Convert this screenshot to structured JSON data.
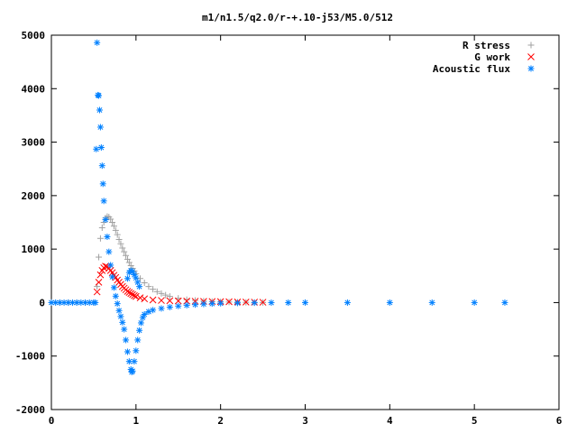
{
  "chart_data": {
    "type": "scatter",
    "title": "m1/n1.5/q2.0/r-+.10-j53/M5.0/512",
    "xlabel": "",
    "ylabel": "",
    "xlim": [
      0,
      6
    ],
    "ylim": [
      -2000,
      5000
    ],
    "x_ticks": [
      "0",
      "1",
      "2",
      "3",
      "4",
      "5",
      "6"
    ],
    "y_ticks": [
      "-2000",
      "-1000",
      "0",
      "1000",
      "2000",
      "3000",
      "4000",
      "5000"
    ],
    "grid": false,
    "legend_position": "top-right",
    "series": [
      {
        "name": "R stress",
        "marker": "plus",
        "color": "#a0a0a0",
        "points": [
          [
            0.0,
            0
          ],
          [
            0.1,
            0
          ],
          [
            0.2,
            0
          ],
          [
            0.3,
            0
          ],
          [
            0.4,
            0
          ],
          [
            0.5,
            0
          ],
          [
            0.54,
            300
          ],
          [
            0.56,
            850
          ],
          [
            0.58,
            1200
          ],
          [
            0.6,
            1400
          ],
          [
            0.62,
            1500
          ],
          [
            0.64,
            1580
          ],
          [
            0.66,
            1610
          ],
          [
            0.68,
            1600
          ],
          [
            0.7,
            1560
          ],
          [
            0.72,
            1500
          ],
          [
            0.74,
            1430
          ],
          [
            0.76,
            1350
          ],
          [
            0.78,
            1270
          ],
          [
            0.8,
            1180
          ],
          [
            0.82,
            1100
          ],
          [
            0.84,
            1020
          ],
          [
            0.86,
            950
          ],
          [
            0.88,
            880
          ],
          [
            0.9,
            810
          ],
          [
            0.92,
            750
          ],
          [
            0.94,
            690
          ],
          [
            0.96,
            640
          ],
          [
            0.98,
            590
          ],
          [
            1.0,
            540
          ],
          [
            1.05,
            450
          ],
          [
            1.1,
            370
          ],
          [
            1.15,
            300
          ],
          [
            1.2,
            250
          ],
          [
            1.25,
            205
          ],
          [
            1.3,
            170
          ],
          [
            1.35,
            140
          ],
          [
            1.4,
            115
          ],
          [
            1.5,
            80
          ],
          [
            1.6,
            55
          ],
          [
            1.7,
            40
          ],
          [
            1.8,
            28
          ],
          [
            1.9,
            20
          ],
          [
            2.0,
            14
          ],
          [
            2.1,
            10
          ],
          [
            2.2,
            7
          ],
          [
            2.3,
            5
          ],
          [
            2.4,
            3
          ],
          [
            2.5,
            2
          ]
        ]
      },
      {
        "name": "G work",
        "marker": "cross",
        "color": "#ff0000",
        "points": [
          [
            0.54,
            200
          ],
          [
            0.56,
            380
          ],
          [
            0.58,
            520
          ],
          [
            0.6,
            600
          ],
          [
            0.62,
            650
          ],
          [
            0.64,
            680
          ],
          [
            0.66,
            670
          ],
          [
            0.68,
            640
          ],
          [
            0.7,
            600
          ],
          [
            0.72,
            560
          ],
          [
            0.74,
            510
          ],
          [
            0.76,
            470
          ],
          [
            0.78,
            420
          ],
          [
            0.8,
            380
          ],
          [
            0.82,
            340
          ],
          [
            0.84,
            300
          ],
          [
            0.86,
            270
          ],
          [
            0.88,
            240
          ],
          [
            0.9,
            210
          ],
          [
            0.92,
            190
          ],
          [
            0.94,
            170
          ],
          [
            0.96,
            150
          ],
          [
            0.98,
            130
          ],
          [
            1.0,
            115
          ],
          [
            1.05,
            90
          ],
          [
            1.1,
            70
          ],
          [
            1.2,
            50
          ],
          [
            1.3,
            40
          ],
          [
            1.4,
            35
          ],
          [
            1.5,
            30
          ],
          [
            1.6,
            28
          ],
          [
            1.7,
            25
          ],
          [
            1.8,
            22
          ],
          [
            1.9,
            20
          ],
          [
            2.0,
            18
          ],
          [
            2.1,
            15
          ],
          [
            2.2,
            12
          ],
          [
            2.3,
            10
          ],
          [
            2.4,
            8
          ],
          [
            2.5,
            6
          ]
        ]
      },
      {
        "name": "Acoustic flux",
        "marker": "star",
        "color": "#0080ff",
        "points": [
          [
            0.0,
            0
          ],
          [
            0.05,
            0
          ],
          [
            0.1,
            0
          ],
          [
            0.15,
            0
          ],
          [
            0.2,
            0
          ],
          [
            0.25,
            0
          ],
          [
            0.3,
            0
          ],
          [
            0.35,
            0
          ],
          [
            0.4,
            0
          ],
          [
            0.45,
            0
          ],
          [
            0.5,
            0
          ],
          [
            0.52,
            0
          ],
          [
            0.53,
            2870
          ],
          [
            0.54,
            4860
          ],
          [
            0.55,
            3880
          ],
          [
            0.56,
            3870
          ],
          [
            0.57,
            3600
          ],
          [
            0.58,
            3280
          ],
          [
            0.59,
            2900
          ],
          [
            0.6,
            2560
          ],
          [
            0.61,
            2220
          ],
          [
            0.62,
            1900
          ],
          [
            0.64,
            1550
          ],
          [
            0.66,
            1230
          ],
          [
            0.68,
            950
          ],
          [
            0.7,
            700
          ],
          [
            0.72,
            480
          ],
          [
            0.74,
            280
          ],
          [
            0.76,
            120
          ],
          [
            0.78,
            -20
          ],
          [
            0.8,
            -150
          ],
          [
            0.82,
            -260
          ],
          [
            0.84,
            -370
          ],
          [
            0.86,
            -500
          ],
          [
            0.88,
            -700
          ],
          [
            0.9,
            -920
          ],
          [
            0.92,
            -1100
          ],
          [
            0.94,
            -1250
          ],
          [
            0.95,
            -1300
          ],
          [
            0.96,
            -1280
          ],
          [
            0.98,
            -1100
          ],
          [
            1.0,
            -900
          ],
          [
            1.02,
            -700
          ],
          [
            1.04,
            -520
          ],
          [
            1.06,
            -380
          ],
          [
            1.08,
            -280
          ],
          [
            1.1,
            -220
          ],
          [
            1.15,
            -170
          ],
          [
            1.2,
            -140
          ],
          [
            1.3,
            -110
          ],
          [
            1.4,
            -85
          ],
          [
            1.5,
            -65
          ],
          [
            1.6,
            -50
          ],
          [
            1.7,
            -38
          ],
          [
            1.8,
            -28
          ],
          [
            1.9,
            -20
          ],
          [
            2.0,
            -14
          ],
          [
            2.2,
            -8
          ],
          [
            2.4,
            -4
          ],
          [
            2.6,
            -2
          ],
          [
            2.8,
            -1
          ],
          [
            3.0,
            0
          ],
          [
            3.5,
            0
          ],
          [
            4.0,
            0
          ],
          [
            4.5,
            0
          ],
          [
            5.0,
            0
          ],
          [
            5.36,
            0
          ]
        ]
      },
      {
        "name": "",
        "marker": "star",
        "color": "#0080ff",
        "points": [
          [
            0.9,
            450
          ],
          [
            0.92,
            560
          ],
          [
            0.94,
            600
          ],
          [
            0.96,
            580
          ],
          [
            0.98,
            520
          ],
          [
            1.0,
            460
          ],
          [
            1.02,
            380
          ],
          [
            1.04,
            300
          ]
        ]
      }
    ]
  }
}
